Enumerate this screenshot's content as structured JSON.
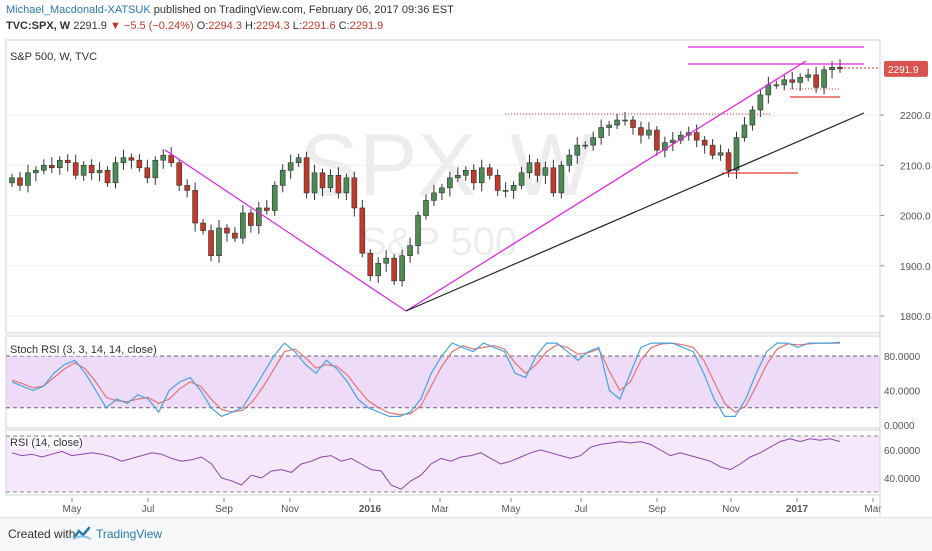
{
  "header": {
    "author": "Michael_Macdonald-XATSUK",
    "published_text": "published on TradingView.com, February 06, 2017 09:36 EST",
    "symbol": "TVC:SPX, W",
    "last": "2291.9",
    "change": "−5.5 (−0.24%)",
    "o_label": "O:",
    "o_value": "2294.3",
    "h_label": "H:",
    "h_value": "2294.3",
    "l_label": "L:",
    "l_value": "2291.6",
    "c_label": "C:",
    "c_value": "2291.9"
  },
  "series_label": "S&P 500, W, TVC",
  "watermark": {
    "symbol": "SPX",
    "interval": "W",
    "name": "S&P 500"
  },
  "price_tag": "2291.9",
  "stoch_label": "Stoch RSI (3, 3, 14, 14, close)",
  "rsi_label": "RSI (14, close)",
  "footer": {
    "created_with": "Created with",
    "brand": "TradingView"
  },
  "colors": {
    "up": "#4c8b54",
    "down": "#c0392b",
    "trendline_magenta": "#e020e0",
    "trendline_black": "#222222",
    "stoch_k": "#4aa3df",
    "stoch_d": "#e57373",
    "rsi_line": "#8e44ad",
    "band_fill": "#e6ccf5"
  },
  "chart_data": [
    {
      "type": "candlestick",
      "title": "S&P 500, W, TVC",
      "y_ticks": [
        1800,
        1900,
        2000,
        2100,
        2200
      ],
      "x_ticks": [
        "May",
        "Jul",
        "Sep",
        "Nov",
        "2016",
        "Mar",
        "May",
        "Jul",
        "Sep",
        "Nov",
        "2017",
        "Mar"
      ],
      "last_value": 2291.9,
      "closes": [
        2075,
        2060,
        2085,
        2090,
        2100,
        2095,
        2110,
        2105,
        2080,
        2100,
        2085,
        2090,
        2065,
        2105,
        2115,
        2110,
        2095,
        2075,
        2110,
        2120,
        2105,
        2060,
        2050,
        1985,
        1970,
        1920,
        1975,
        1965,
        1955,
        2005,
        1980,
        2015,
        2010,
        2060,
        2090,
        2105,
        2115,
        2045,
        2085,
        2055,
        2080,
        2045,
        2075,
        2015,
        1925,
        1880,
        1905,
        1915,
        1870,
        1920,
        1940,
        2000,
        2030,
        2045,
        2055,
        2075,
        2080,
        2090,
        2065,
        2095,
        2080,
        2050,
        2050,
        2060,
        2085,
        2105,
        2080,
        2095,
        2045,
        2100,
        2120,
        2140,
        2140,
        2155,
        2175,
        2180,
        2190,
        2190,
        2175,
        2160,
        2170,
        2130,
        2145,
        2150,
        2160,
        2165,
        2150,
        2140,
        2120,
        2125,
        2090,
        2155,
        2180,
        2210,
        2240,
        2260,
        2260,
        2270,
        2265,
        2275,
        2280,
        2255,
        2290,
        2295,
        2291.9
      ],
      "resistance_levels": [
        2250,
        2275,
        2285
      ],
      "support_levels": [
        2085,
        2240
      ]
    },
    {
      "type": "line",
      "title": "Stoch RSI (3, 3, 14, 14, close)",
      "y_ticks": [
        0,
        40,
        80
      ],
      "band": [
        20,
        80
      ],
      "series": [
        {
          "name": "K",
          "values": [
            50,
            45,
            40,
            45,
            60,
            70,
            75,
            60,
            40,
            20,
            30,
            25,
            35,
            30,
            15,
            40,
            50,
            55,
            40,
            20,
            10,
            15,
            20,
            40,
            60,
            80,
            95,
            85,
            70,
            60,
            75,
            65,
            50,
            30,
            20,
            15,
            10,
            10,
            15,
            30,
            60,
            80,
            95,
            90,
            85,
            95,
            90,
            85,
            60,
            55,
            80,
            95,
            95,
            85,
            75,
            85,
            90,
            40,
            30,
            60,
            90,
            95,
            95,
            95,
            90,
            85,
            60,
            30,
            10,
            10,
            30,
            60,
            85,
            95,
            95,
            90,
            95,
            95,
            95,
            96
          ]
        },
        {
          "name": "D",
          "values": [
            52,
            48,
            43,
            45,
            55,
            65,
            72,
            65,
            50,
            32,
            28,
            27,
            30,
            32,
            25,
            30,
            42,
            50,
            45,
            30,
            18,
            15,
            17,
            28,
            45,
            65,
            85,
            88,
            78,
            66,
            70,
            68,
            58,
            42,
            28,
            20,
            14,
            12,
            13,
            22,
            45,
            68,
            85,
            92,
            88,
            90,
            92,
            88,
            72,
            60,
            70,
            85,
            93,
            90,
            82,
            84,
            88,
            62,
            40,
            50,
            75,
            90,
            94,
            95,
            93,
            90,
            75,
            50,
            25,
            15,
            22,
            45,
            70,
            88,
            94,
            93,
            94,
            95,
            95,
            95
          ]
        }
      ]
    },
    {
      "type": "line",
      "title": "RSI (14, close)",
      "y_ticks": [
        40,
        60
      ],
      "band": [
        30,
        70
      ],
      "series": [
        {
          "name": "RSI",
          "values": [
            58,
            56,
            57,
            55,
            57,
            59,
            56,
            57,
            58,
            57,
            55,
            52,
            54,
            56,
            58,
            57,
            54,
            52,
            53,
            55,
            50,
            40,
            38,
            35,
            42,
            40,
            45,
            46,
            44,
            50,
            52,
            55,
            56,
            52,
            54,
            50,
            46,
            45,
            35,
            32,
            38,
            42,
            50,
            54,
            52,
            55,
            56,
            58,
            54,
            50,
            52,
            55,
            58,
            60,
            58,
            56,
            54,
            56,
            62,
            64,
            65,
            66,
            65,
            66,
            64,
            60,
            56,
            58,
            56,
            54,
            52,
            48,
            46,
            50,
            55,
            58,
            62,
            66,
            68,
            66,
            68,
            67,
            68,
            66
          ]
        }
      ]
    }
  ]
}
